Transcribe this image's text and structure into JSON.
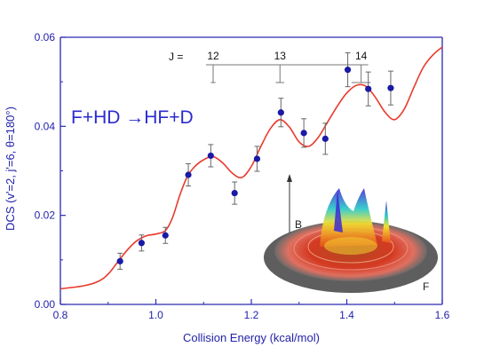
{
  "chart_data": {
    "type": "scatter",
    "title": "",
    "xlabel": "Collision Energy (kcal/mol)",
    "ylabel": "DCS (v'=2, j'=6, θ=180°)",
    "xlim": [
      0.8,
      1.6
    ],
    "ylim": [
      0.0,
      0.06
    ],
    "x_ticks": [
      "0.8",
      "1.0",
      "1.2",
      "1.4",
      "1.6"
    ],
    "y_ticks": [
      "0.00",
      "0.02",
      "0.04",
      "0.06"
    ],
    "grid": false,
    "series": [
      {
        "kind": "points_with_error_bars",
        "color": "#1a1aa6",
        "points": [
          {
            "x": 0.925,
            "y": 0.0097,
            "err": 0.0018
          },
          {
            "x": 0.97,
            "y": 0.0138,
            "err": 0.0018
          },
          {
            "x": 1.02,
            "y": 0.0155,
            "err": 0.0018
          },
          {
            "x": 1.068,
            "y": 0.0291,
            "err": 0.0025
          },
          {
            "x": 1.115,
            "y": 0.0334,
            "err": 0.0025
          },
          {
            "x": 1.165,
            "y": 0.025,
            "err": 0.0025
          },
          {
            "x": 1.212,
            "y": 0.0327,
            "err": 0.0028
          },
          {
            "x": 1.262,
            "y": 0.0431,
            "err": 0.0032
          },
          {
            "x": 1.31,
            "y": 0.0385,
            "err": 0.0032
          },
          {
            "x": 1.355,
            "y": 0.0372,
            "err": 0.0035
          },
          {
            "x": 1.402,
            "y": 0.0527,
            "err": 0.0038
          },
          {
            "x": 1.445,
            "y": 0.0484,
            "err": 0.0038
          },
          {
            "x": 1.492,
            "y": 0.0486,
            "err": 0.0038
          }
        ]
      },
      {
        "kind": "curve",
        "color": "#e83a2c",
        "x": [
          0.8,
          0.85,
          0.88,
          0.9,
          0.92,
          0.94,
          0.96,
          0.98,
          1.0,
          1.02,
          1.035,
          1.05,
          1.065,
          1.08,
          1.1,
          1.12,
          1.14,
          1.16,
          1.18,
          1.2,
          1.22,
          1.24,
          1.26,
          1.28,
          1.3,
          1.32,
          1.34,
          1.36,
          1.38,
          1.4,
          1.42,
          1.44,
          1.46,
          1.48,
          1.5,
          1.52,
          1.54,
          1.56,
          1.58,
          1.6
        ],
        "y": [
          0.0035,
          0.0042,
          0.0052,
          0.0068,
          0.0095,
          0.0122,
          0.0143,
          0.0154,
          0.0158,
          0.0166,
          0.0195,
          0.0245,
          0.0285,
          0.0308,
          0.0325,
          0.0332,
          0.0318,
          0.0295,
          0.0285,
          0.031,
          0.0355,
          0.0395,
          0.0415,
          0.0398,
          0.0365,
          0.0355,
          0.0375,
          0.041,
          0.0445,
          0.0475,
          0.0492,
          0.049,
          0.0465,
          0.0432,
          0.0415,
          0.0438,
          0.0486,
          0.0532,
          0.056,
          0.0578
        ]
      }
    ],
    "annotations": {
      "reaction": "F+HD →HF+D",
      "j_prefix": "J =",
      "j_levels": [
        {
          "label": "12",
          "x": 1.12,
          "err": 0.005
        },
        {
          "label": "13",
          "x": 1.26,
          "err": 0.009
        },
        {
          "label": "14",
          "x": 1.43,
          "err": 0.02
        }
      ],
      "arrow_label": "B",
      "arrow_x": 1.28,
      "inset_label": "F"
    }
  }
}
